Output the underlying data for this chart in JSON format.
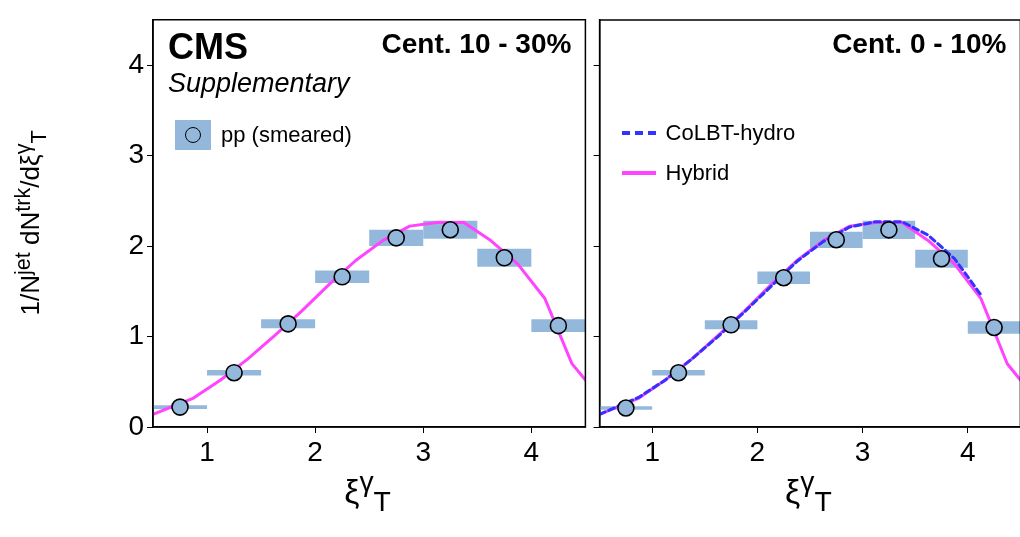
{
  "chart_data": [
    {
      "type": "scatter",
      "title": "Cent. 10 - 30%",
      "annotations": [
        "CMS",
        "Supplementary"
      ],
      "xlabel": "ξ$^{γ}$$_{T}$",
      "ylabel": "1/N$^{jet}$ dN$^{trk}$/dξ$^{γ}$$_{T}$",
      "xlim": [
        0.5,
        4.5
      ],
      "ylim": [
        0,
        4.5
      ],
      "xticks": [
        1,
        2,
        3,
        4
      ],
      "yticks": [
        0,
        1,
        2,
        3,
        4
      ],
      "legend": "top left",
      "marker": "circle",
      "series": [
        {
          "name": "pp (smeared)",
          "color": "#94b8dc",
          "x": [
            0.75,
            1.25,
            1.75,
            2.25,
            2.75,
            3.25,
            3.75,
            4.25
          ],
          "values": [
            0.22,
            0.6,
            1.14,
            1.66,
            2.09,
            2.18,
            1.87,
            1.12
          ],
          "errors": [
            0.02,
            0.03,
            0.05,
            0.07,
            0.09,
            0.1,
            0.1,
            0.07
          ]
        },
        {
          "type": "line",
          "color": "#ff44ff",
          "line_style": "solid",
          "marker": "none",
          "x": [
            0.5,
            0.875,
            1.125,
            1.375,
            1.625,
            1.875,
            2.125,
            2.375,
            2.625,
            2.875,
            3.125,
            3.375,
            3.625,
            3.875,
            4.125,
            4.375,
            4.5
          ],
          "values": [
            0.14,
            0.32,
            0.52,
            0.75,
            1.01,
            1.28,
            1.57,
            1.84,
            2.06,
            2.22,
            2.26,
            2.26,
            2.06,
            1.8,
            1.42,
            0.7,
            0.52
          ]
        }
      ]
    },
    {
      "type": "scatter",
      "title": "Cent. 0 - 10%",
      "xlabel": "ξ$^{γ}$$_{T}$",
      "xlim": [
        0.5,
        4.5
      ],
      "ylim": [
        0,
        4.5
      ],
      "xticks": [
        1,
        2,
        3,
        4
      ],
      "yticks": [
        0,
        1,
        2,
        3,
        4
      ],
      "tick_labels": "x",
      "legend": "top left",
      "marker": "circle",
      "series": [
        {
          "color": "#94b8dc",
          "x": [
            0.75,
            1.25,
            1.75,
            2.25,
            2.75,
            3.25,
            3.75,
            4.25
          ],
          "values": [
            0.21,
            0.6,
            1.13,
            1.65,
            2.07,
            2.18,
            1.86,
            1.1
          ],
          "errors": [
            0.02,
            0.03,
            0.05,
            0.07,
            0.09,
            0.1,
            0.1,
            0.07
          ]
        },
        {
          "name": "CoLBT-hydro",
          "type": "line",
          "color": "#3333ff",
          "line_style": "dashed",
          "marker": "none",
          "x": [
            0.5,
            0.875,
            1.125,
            1.375,
            1.625,
            1.875,
            2.125,
            2.375,
            2.625,
            2.875,
            3.125,
            3.375,
            3.625,
            3.875,
            4.125
          ],
          "values": [
            0.14,
            0.33,
            0.52,
            0.75,
            1.0,
            1.27,
            1.55,
            1.83,
            2.05,
            2.21,
            2.27,
            2.27,
            2.12,
            1.86,
            1.46
          ]
        },
        {
          "name": "Hybrid",
          "type": "line",
          "color": "#ff44ff",
          "line_style": "solid",
          "marker": "none",
          "x": [
            0.5,
            0.875,
            1.125,
            1.375,
            1.625,
            1.875,
            2.125,
            2.375,
            2.625,
            2.875,
            3.125,
            3.375,
            3.625,
            3.875,
            4.125,
            4.375,
            4.5
          ],
          "values": [
            0.14,
            0.32,
            0.52,
            0.75,
            1.01,
            1.28,
            1.57,
            1.84,
            2.06,
            2.22,
            2.26,
            2.26,
            2.06,
            1.8,
            1.42,
            0.7,
            0.52
          ]
        }
      ]
    }
  ]
}
